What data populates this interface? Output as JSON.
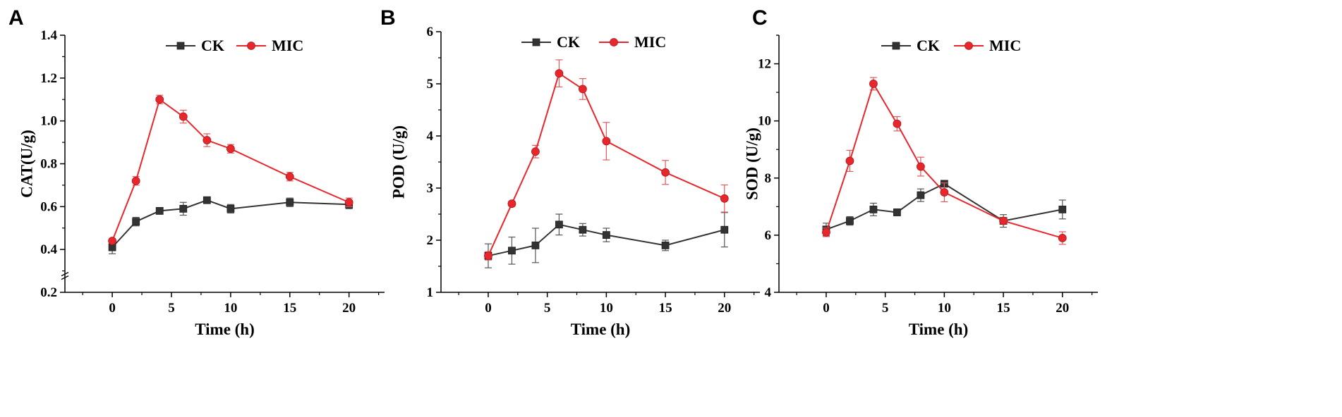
{
  "colors": {
    "ck": "#333333",
    "mic": "#e8272d",
    "ck_err": "#555555",
    "mic_err": "#e05a5e",
    "axis": "#000000"
  },
  "chart_data": [
    {
      "panel": "A",
      "type": "line",
      "xlabel": "Time (h)",
      "ylabel": "CAT(U/g)",
      "xlim": [
        -4,
        23
      ],
      "ylim": [
        0.2,
        1.4
      ],
      "xticks": [
        0,
        5,
        10,
        15,
        20
      ],
      "xtick_labels": [
        "0",
        "5",
        "10",
        "15",
        "20"
      ],
      "yticks": [
        0.2,
        0.4,
        0.6,
        0.8,
        1.0,
        1.2,
        1.4
      ],
      "ytick_labels": [
        "0.2",
        "0.4",
        "0.6",
        "0.8",
        "1.0",
        "1.2",
        "1.4"
      ],
      "ybreak": true,
      "series": [
        {
          "name": "CK",
          "marker": "square",
          "x": [
            0,
            2,
            4,
            6,
            8,
            10,
            15,
            20
          ],
          "values": [
            0.41,
            0.53,
            0.58,
            0.59,
            0.63,
            0.59,
            0.62,
            0.61
          ],
          "errors": [
            0.03,
            0.02,
            0.01,
            0.03,
            0.01,
            0.02,
            0.02,
            0.02
          ]
        },
        {
          "name": "MIC",
          "marker": "circle",
          "x": [
            0,
            2,
            4,
            6,
            8,
            10,
            15,
            20
          ],
          "values": [
            0.44,
            0.72,
            1.1,
            1.02,
            0.91,
            0.87,
            0.74,
            0.62
          ],
          "errors": [
            0.01,
            0.02,
            0.02,
            0.03,
            0.03,
            0.02,
            0.02,
            0.02
          ]
        }
      ]
    },
    {
      "panel": "B",
      "type": "line",
      "xlabel": "Time (h)",
      "ylabel": "POD (U/g)",
      "xlim": [
        -4,
        23
      ],
      "ylim": [
        1,
        6
      ],
      "xticks": [
        0,
        5,
        10,
        15,
        20
      ],
      "xtick_labels": [
        "0",
        "5",
        "10",
        "15",
        "20"
      ],
      "yticks": [
        1,
        2,
        3,
        4,
        5,
        6
      ],
      "ytick_labels": [
        "1",
        "2",
        "3",
        "4",
        "5",
        "6"
      ],
      "series": [
        {
          "name": "CK",
          "marker": "square",
          "x": [
            0,
            2,
            4,
            6,
            8,
            10,
            15,
            20
          ],
          "values": [
            1.7,
            1.8,
            1.9,
            2.3,
            2.2,
            2.1,
            1.9,
            2.2
          ],
          "errors": [
            0.23,
            0.26,
            0.33,
            0.2,
            0.12,
            0.13,
            0.1,
            0.33
          ]
        },
        {
          "name": "MIC",
          "marker": "circle",
          "x": [
            0,
            2,
            4,
            6,
            8,
            10,
            15,
            20
          ],
          "values": [
            1.7,
            2.7,
            3.7,
            5.2,
            4.9,
            3.9,
            3.3,
            2.8
          ],
          "errors": [
            0.08,
            0.05,
            0.12,
            0.26,
            0.2,
            0.36,
            0.23,
            0.26
          ]
        }
      ]
    },
    {
      "panel": "C",
      "type": "line",
      "xlabel": "Time (h)",
      "ylabel": "SOD (U/g)",
      "xlim": [
        -4,
        23
      ],
      "ylim": [
        4,
        13
      ],
      "xticks": [
        0,
        5,
        10,
        15,
        20
      ],
      "xtick_labels": [
        "0",
        "5",
        "10",
        "15",
        "20"
      ],
      "yticks": [
        4,
        6,
        8,
        10,
        12
      ],
      "ytick_labels": [
        "4",
        "6",
        "8",
        "10",
        "12"
      ],
      "series": [
        {
          "name": "CK",
          "marker": "square",
          "x": [
            0,
            2,
            4,
            6,
            8,
            10,
            15,
            20
          ],
          "values": [
            6.2,
            6.5,
            6.9,
            6.8,
            7.4,
            7.8,
            6.5,
            6.9
          ],
          "errors": [
            0.22,
            0.15,
            0.22,
            0.12,
            0.22,
            0.1,
            0.22,
            0.33
          ]
        },
        {
          "name": "MIC",
          "marker": "circle",
          "x": [
            0,
            2,
            4,
            6,
            8,
            10,
            15,
            20
          ],
          "values": [
            6.1,
            8.6,
            11.3,
            9.9,
            8.4,
            7.5,
            6.5,
            5.9
          ],
          "errors": [
            0.15,
            0.37,
            0.22,
            0.25,
            0.33,
            0.33,
            0.1,
            0.22
          ]
        }
      ]
    }
  ]
}
